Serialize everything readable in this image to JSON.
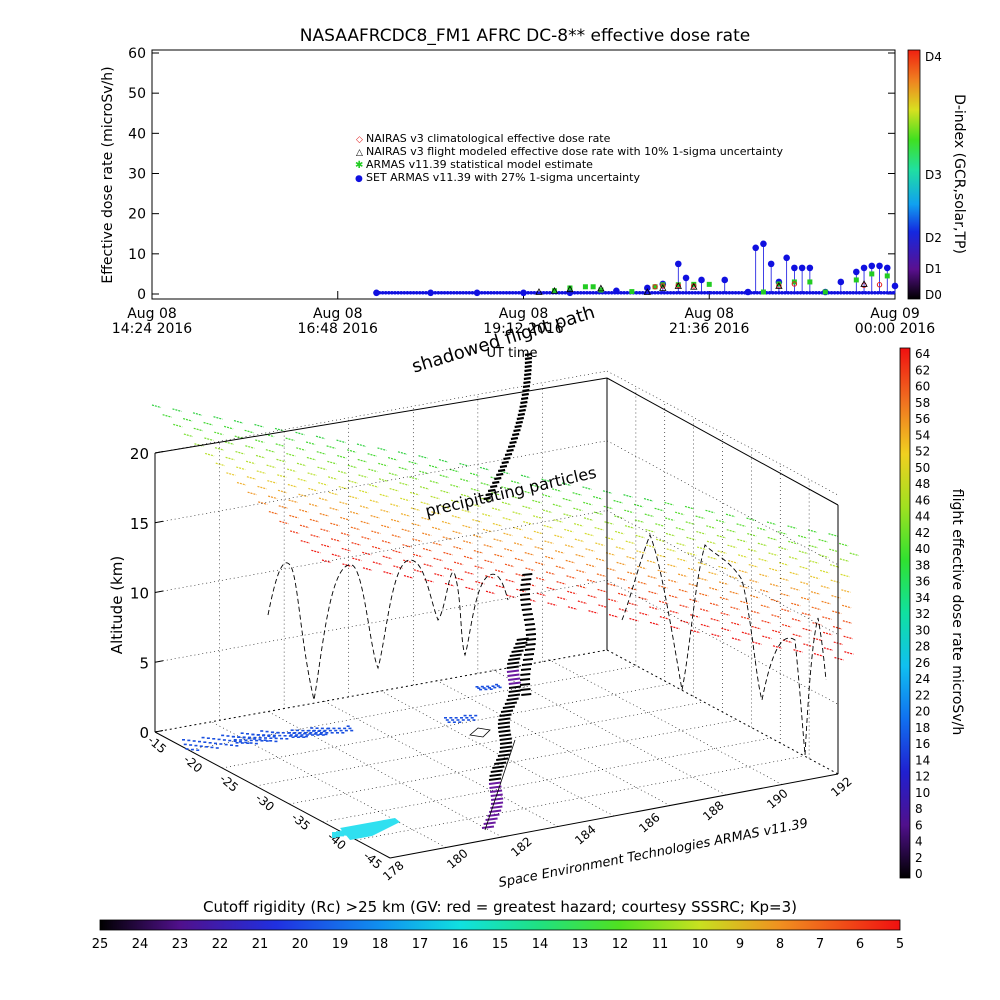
{
  "chart_data": [
    {
      "type": "scatter",
      "title": "NASAAFRCDC8_FM1 AFRC DC-8** effective dose rate",
      "ylabel": "Effective dose rate (microSv/h)",
      "ylim": [
        0,
        60
      ],
      "yticks": [
        0,
        10,
        20,
        30,
        40,
        50,
        60
      ],
      "xlabel": "UT time",
      "xtick_labels": [
        [
          "Aug 08",
          "14:24 2016"
        ],
        [
          "Aug 08",
          "16:48 2016"
        ],
        [
          "Aug 08",
          "19:12 2016"
        ],
        [
          "Aug 08",
          "21:36 2016"
        ],
        [
          "Aug 09",
          "00:00 2016"
        ]
      ],
      "xlim_hours": [
        14.4,
        24.0
      ],
      "legend": [
        {
          "marker": "◇",
          "color": "#e02020",
          "label": "NAIRAS v3 climatological effective dose rate"
        },
        {
          "marker": "△",
          "color": "#000000",
          "label": "NAIRAS v3 flight modeled effective dose rate with 10% 1-sigma uncertainty"
        },
        {
          "marker": "✱",
          "color": "#22cc22",
          "label": "ARMAS v11.39 statistical model estimate"
        },
        {
          "marker": "●",
          "color": "#1010e0",
          "label": "SET ARMAS v11.39 with 27% 1-sigma uncertainty"
        }
      ],
      "series": [
        {
          "name": "SET ARMAS v11.39 with 27% 1-sigma uncertainty",
          "x": [
            17.3,
            18.0,
            18.6,
            19.2,
            19.8,
            20.4,
            20.8,
            21.0,
            21.2,
            21.3,
            21.5,
            21.8,
            22.1,
            22.2,
            22.3,
            22.4,
            22.5,
            22.6,
            22.7,
            22.8,
            22.9,
            23.1,
            23.3,
            23.5,
            23.6,
            23.7,
            23.8,
            23.9,
            24.0
          ],
          "y": [
            0.3,
            0.3,
            0.3,
            0.3,
            0.3,
            0.8,
            1.5,
            2.5,
            7.5,
            4.0,
            3.5,
            3.5,
            0.5,
            11.5,
            12.5,
            7.5,
            3.0,
            9.0,
            6.5,
            6.5,
            6.5,
            0.5,
            3.0,
            5.5,
            6.5,
            7.0,
            7.0,
            6.5,
            2.0
          ]
        },
        {
          "name": "ARMAS v11.39 statistical model estimate",
          "x": [
            19.6,
            19.8,
            20.0,
            20.1,
            20.2,
            20.6,
            20.9,
            21.0,
            21.2,
            21.4,
            21.6,
            22.3,
            22.5,
            22.7,
            22.9,
            23.1,
            23.5,
            23.7,
            23.9
          ],
          "y": [
            0.8,
            1.5,
            1.8,
            1.8,
            1.0,
            0.6,
            1.8,
            2.3,
            2.3,
            2.4,
            2.4,
            0.5,
            2.5,
            3.0,
            3.0,
            0.5,
            3.5,
            5.0,
            4.5
          ]
        },
        {
          "name": "NAIRAS v3 climatological effective dose rate",
          "x": [
            20.9,
            21.0,
            21.2,
            21.4,
            22.5,
            22.7,
            23.6,
            23.8
          ],
          "y": [
            1.8,
            2.0,
            2.1,
            2.0,
            2.0,
            2.5,
            2.2,
            2.3
          ]
        },
        {
          "name": "NAIRAS v3 flight modeled effective dose rate with 10% 1-sigma uncertainty",
          "x": [
            19.4,
            19.6,
            19.8,
            20.2,
            20.8,
            21.0,
            21.2,
            21.4,
            22.5,
            23.6
          ],
          "y": [
            0.5,
            0.8,
            1.2,
            1.4,
            0.5,
            1.5,
            2.0,
            1.8,
            2.0,
            2.5
          ]
        }
      ],
      "colorbar": {
        "title": "D-index (GCR,solar,TP)",
        "labels": [
          "D4",
          "D3",
          "D2",
          "D1",
          "D0"
        ]
      }
    },
    {
      "type": "scatter",
      "annotation_top": "shadowed flight path",
      "annotation_mid": "precipitating particles",
      "zlabel": "Altitude (km)",
      "zlim": [
        0,
        20
      ],
      "zticks": [
        0,
        5,
        10,
        15,
        20
      ],
      "lat_ticks": [
        "-15",
        "-20",
        "-25",
        "-30",
        "-35",
        "-40",
        "-45"
      ],
      "lon_ticks": [
        "178",
        "180",
        "182",
        "184",
        "186",
        "188",
        "190",
        "192"
      ],
      "credit": "Space Environment Technologies ARMAS v11.39",
      "colorbar": {
        "title": "flight effective dose rate microSv/h",
        "range": [
          0,
          64
        ],
        "labels": [
          "64",
          "62",
          "60",
          "58",
          "56",
          "54",
          "52",
          "50",
          "48",
          "46",
          "44",
          "42",
          "40",
          "38",
          "36",
          "34",
          "32",
          "30",
          "28",
          "26",
          "24",
          "22",
          "20",
          "18",
          "16",
          "14",
          "12",
          "10",
          "8",
          "6",
          "4",
          "2",
          "0"
        ]
      }
    }
  ],
  "bottom_colorbar": {
    "title": "Cutoff rigidity (Rc) >25 km (GV: red = greatest hazard; courtesy SSSRC; Kp=3)",
    "labels": [
      "25",
      "24",
      "23",
      "22",
      "21",
      "20",
      "19",
      "18",
      "17",
      "16",
      "15",
      "14",
      "13",
      "12",
      "11",
      "10",
      "9",
      "8",
      "7",
      "6",
      "5"
    ]
  }
}
